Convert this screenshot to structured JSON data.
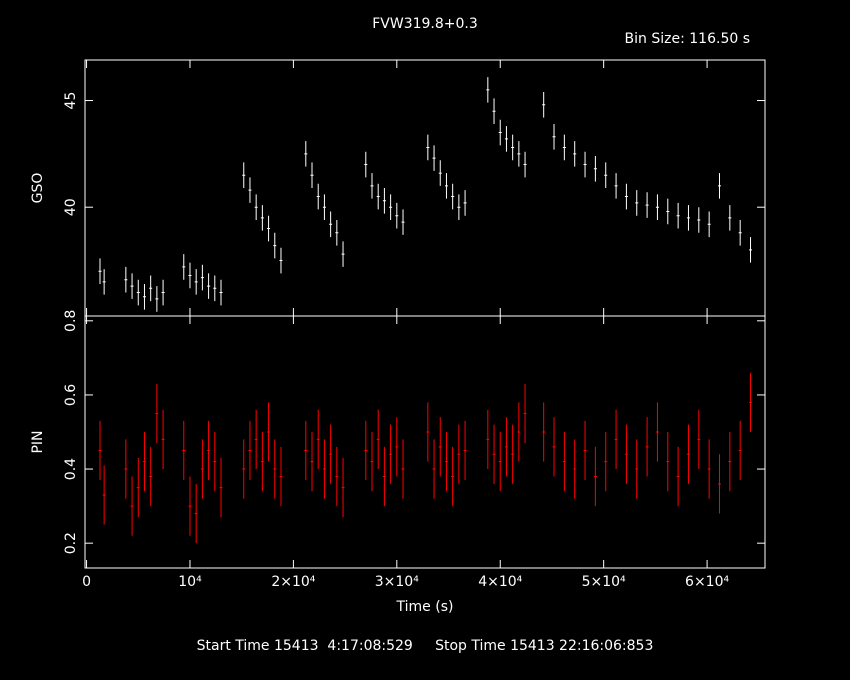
{
  "chart_data": [
    {
      "type": "errorbar",
      "title": "FVW319.8+0.3",
      "bin_size": "Bin Size: 116.50 s",
      "y_label": "GSO",
      "x": [
        1300,
        1700,
        3800,
        4400,
        5000,
        5600,
        6200,
        6800,
        7400,
        9400,
        10000,
        10600,
        11200,
        11800,
        12400,
        13000,
        15200,
        15800,
        16400,
        17000,
        17600,
        18200,
        18800,
        21200,
        21800,
        22400,
        23000,
        23600,
        24200,
        24800,
        27000,
        27600,
        28200,
        28800,
        29400,
        30000,
        30600,
        33000,
        33600,
        34200,
        34800,
        35400,
        36000,
        36600,
        38800,
        39400,
        40000,
        40600,
        41200,
        41800,
        42400,
        44200,
        45200,
        46200,
        47200,
        48200,
        49200,
        50200,
        51200,
        52200,
        53200,
        54200,
        55200,
        56200,
        57200,
        58200,
        59200,
        60200,
        61200,
        62200,
        63200,
        64200
      ],
      "values": [
        37.0,
        36.5,
        36.6,
        36.3,
        36.0,
        35.8,
        36.2,
        35.7,
        36.0,
        37.2,
        36.8,
        36.5,
        36.7,
        36.3,
        36.2,
        36.0,
        41.5,
        40.8,
        40.0,
        39.5,
        39.0,
        38.2,
        37.5,
        42.5,
        41.5,
        40.5,
        40.0,
        39.2,
        38.8,
        37.8,
        42.0,
        41.0,
        40.5,
        40.3,
        40.0,
        39.6,
        39.3,
        42.8,
        42.3,
        41.6,
        41.0,
        40.5,
        40.0,
        40.2,
        45.5,
        44.5,
        43.5,
        43.2,
        42.8,
        42.5,
        42.0,
        44.8,
        43.3,
        42.8,
        42.5,
        42.0,
        41.8,
        41.5,
        41.0,
        40.5,
        40.2,
        40.1,
        40.0,
        39.8,
        39.6,
        39.5,
        39.4,
        39.2,
        41.0,
        39.5,
        38.8,
        38.0
      ],
      "yerr": 0.6,
      "color": "#ffffff",
      "xlim": [
        -150,
        65600
      ],
      "ylim": [
        34.9,
        46.9
      ],
      "yticks": [
        40,
        45
      ]
    },
    {
      "type": "errorbar",
      "y_label": "PIN",
      "x_label": "Time (s)",
      "x": [
        1300,
        1700,
        3800,
        4400,
        5000,
        5600,
        6200,
        6800,
        7400,
        9400,
        10000,
        10600,
        11200,
        11800,
        12400,
        13000,
        15200,
        15800,
        16400,
        17000,
        17600,
        18200,
        18800,
        21200,
        21800,
        22400,
        23000,
        23600,
        24200,
        24800,
        27000,
        27600,
        28200,
        28800,
        29400,
        30000,
        30600,
        33000,
        33600,
        34200,
        34800,
        35400,
        36000,
        36600,
        38800,
        39400,
        40000,
        40600,
        41200,
        41800,
        42400,
        44200,
        45200,
        46200,
        47200,
        48200,
        49200,
        50200,
        51200,
        52200,
        53200,
        54200,
        55200,
        56200,
        57200,
        58200,
        59200,
        60200,
        61200,
        62200,
        63200,
        64200
      ],
      "values": [
        0.45,
        0.33,
        0.4,
        0.3,
        0.35,
        0.42,
        0.38,
        0.55,
        0.48,
        0.45,
        0.3,
        0.28,
        0.4,
        0.45,
        0.42,
        0.35,
        0.4,
        0.45,
        0.48,
        0.42,
        0.5,
        0.4,
        0.38,
        0.45,
        0.42,
        0.48,
        0.4,
        0.44,
        0.38,
        0.35,
        0.45,
        0.42,
        0.48,
        0.38,
        0.44,
        0.46,
        0.4,
        0.5,
        0.4,
        0.46,
        0.42,
        0.38,
        0.44,
        0.45,
        0.48,
        0.44,
        0.42,
        0.46,
        0.44,
        0.5,
        0.55,
        0.5,
        0.46,
        0.42,
        0.4,
        0.45,
        0.38,
        0.42,
        0.48,
        0.44,
        0.4,
        0.46,
        0.5,
        0.42,
        0.38,
        0.44,
        0.48,
        0.4,
        0.36,
        0.42,
        0.45,
        0.58
      ],
      "yerr": 0.08,
      "color": "#ff0000",
      "xlim": [
        -150,
        65600
      ],
      "ylim": [
        0.133,
        0.813
      ],
      "yticks": [
        0.2,
        0.4,
        0.6,
        0.8
      ],
      "xticks": [
        0,
        {
          "value": 10000,
          "label": "10⁴"
        },
        {
          "value": 20000,
          "label": "2×10⁴"
        },
        {
          "value": 30000,
          "label": "3×10⁴"
        },
        {
          "value": 40000,
          "label": "4×10⁴"
        },
        {
          "value": 50000,
          "label": "5×10⁴"
        },
        {
          "value": 60000,
          "label": "6×10⁴"
        }
      ]
    }
  ],
  "footer": "Start Time 15413  4:17:08:529     Stop Time 15413 22:16:06:853"
}
